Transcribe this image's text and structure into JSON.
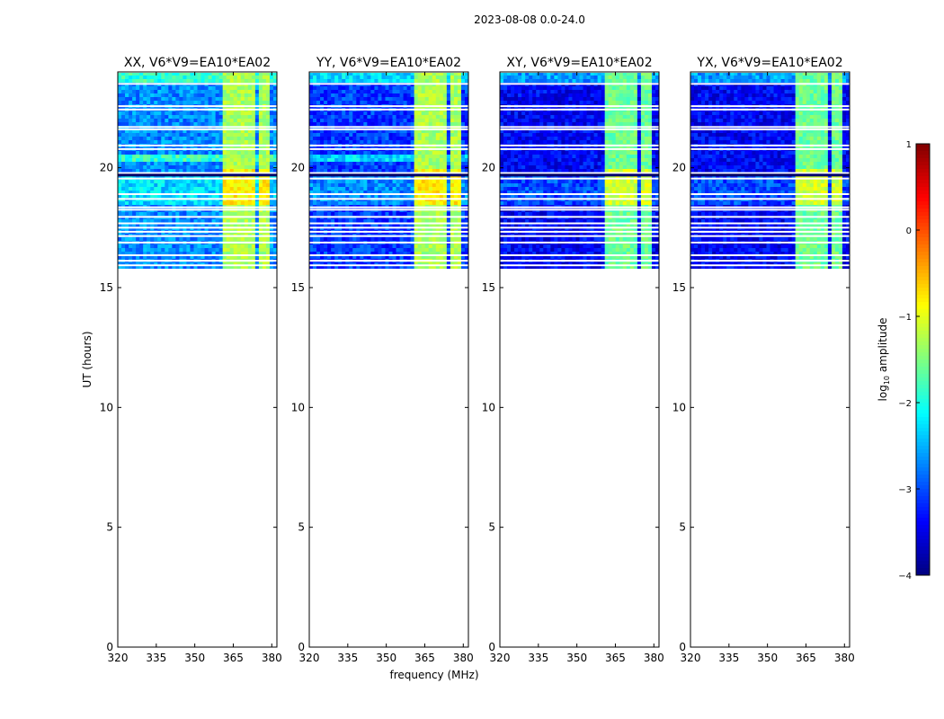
{
  "figure": {
    "suptitle": "2023-08-08 0.0-24.0",
    "xlabel": "frequency (MHz)",
    "ylabel": "UT (hours)",
    "colorbar_label_prefix": "log",
    "colorbar_label_sub": "10",
    "colorbar_label_suffix": " amplitude"
  },
  "chart_data": {
    "type": "heatmap",
    "title": "2023-08-08 0.0-24.0",
    "xlabel": "frequency (MHz)",
    "ylabel": "UT (hours)",
    "xlim": [
      320,
      382
    ],
    "ylim": [
      0,
      24
    ],
    "xticks": [
      320,
      335,
      350,
      365,
      380
    ],
    "yticks": [
      0,
      5,
      10,
      15,
      20
    ],
    "colorbar": {
      "label": "log10 amplitude",
      "range": [
        -4,
        1
      ],
      "ticks": [
        1,
        0,
        -1,
        -2,
        -3,
        -4
      ],
      "tick_labels": [
        "1",
        "0",
        "−1",
        "−2",
        "−3",
        "−4"
      ],
      "colormap": "jet"
    },
    "data_time_range_hours": [
      15.75,
      24.0
    ],
    "bright_freq_bands_mhz": [
      [
        360.5,
        364.5
      ],
      [
        365.5,
        369
      ],
      [
        370,
        374
      ],
      [
        375,
        379.5
      ]
    ],
    "panels": [
      {
        "title": "XX, V6*V9=EA10*EA02",
        "background_log_amp": -2.7,
        "band_log_amp": -1.3
      },
      {
        "title": "YY, V6*V9=EA10*EA02",
        "background_log_amp": -3.1,
        "band_log_amp": -1.3
      },
      {
        "title": "XY, V6*V9=EA10*EA02",
        "background_log_amp": -3.4,
        "band_log_amp": -1.6
      },
      {
        "title": "YX, V6*V9=EA10*EA02",
        "background_log_amp": -3.4,
        "band_log_amp": -1.6
      }
    ],
    "flagged_hours": [
      24.0,
      23.5,
      22.57,
      22.43,
      21.7,
      21.6,
      20.93,
      20.78,
      19.78,
      19.55,
      18.9,
      18.7,
      18.35,
      18.25,
      17.95,
      17.68,
      17.5,
      17.33,
      17.15,
      16.88,
      16.35,
      16.12,
      15.93,
      15.75
    ]
  }
}
